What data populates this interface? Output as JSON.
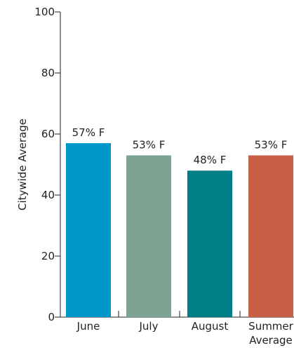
{
  "chart_data": {
    "type": "bar",
    "categories": [
      "June",
      "July",
      "August",
      "Summer Average"
    ],
    "category_lines": [
      [
        "June"
      ],
      [
        "July"
      ],
      [
        "August"
      ],
      [
        "Summer",
        "Average"
      ]
    ],
    "values": [
      57,
      53,
      48,
      53
    ],
    "data_labels": [
      "57% F",
      "53% F",
      "48% F",
      "53% F"
    ],
    "colors": [
      "#0096c8",
      "#7da392",
      "#007e87",
      "#c95f47"
    ],
    "title": "",
    "xlabel": "",
    "ylabel": "Citywide Average",
    "ylim": [
      0,
      100
    ],
    "yticks": [
      0,
      20,
      40,
      60,
      80,
      100
    ],
    "grid": false,
    "legend": "none"
  }
}
